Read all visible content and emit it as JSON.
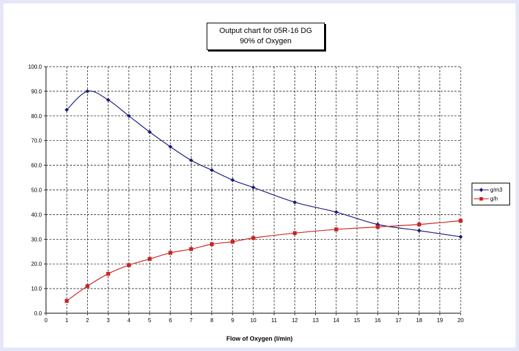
{
  "chart_data": {
    "type": "line",
    "title_lines": [
      "Output chart for 05R-16 DG",
      "90% of Oxygen"
    ],
    "xlabel": "Flow of Oxygen (l/min)",
    "ylabel": "",
    "xlim": [
      0,
      20
    ],
    "ylim": [
      0,
      100
    ],
    "x_ticks": [
      "0",
      "1",
      "2",
      "3",
      "4",
      "5",
      "6",
      "7",
      "8",
      "9",
      "10",
      "11",
      "12",
      "13",
      "14",
      "15",
      "16",
      "17",
      "18",
      "19",
      "20"
    ],
    "y_ticks": [
      "0.0",
      "10.0",
      "20.0",
      "30.0",
      "40.0",
      "50.0",
      "60.0",
      "70.0",
      "80.0",
      "90.0",
      "100.0"
    ],
    "grid": true,
    "legend_position": "right",
    "series": [
      {
        "name": "g/m3",
        "color": "#1a1a7a",
        "marker": "diamond",
        "x": [
          1,
          2,
          3,
          4,
          5,
          6,
          7,
          8,
          9,
          10,
          12,
          14,
          16,
          18,
          20
        ],
        "y": [
          82.5,
          90.0,
          86.5,
          80.0,
          73.5,
          67.5,
          62.0,
          58.0,
          54.0,
          51.0,
          45.0,
          41.0,
          36.0,
          33.5,
          31.0
        ]
      },
      {
        "name": "g/h",
        "color": "#cc2222",
        "marker": "square",
        "x": [
          1,
          2,
          3,
          4,
          5,
          6,
          7,
          8,
          9,
          10,
          12,
          14,
          16,
          18,
          20
        ],
        "y": [
          5.0,
          11.0,
          16.0,
          19.5,
          22.0,
          24.5,
          26.0,
          28.0,
          29.0,
          30.5,
          32.5,
          34.0,
          35.0,
          36.0,
          37.5
        ]
      }
    ]
  }
}
